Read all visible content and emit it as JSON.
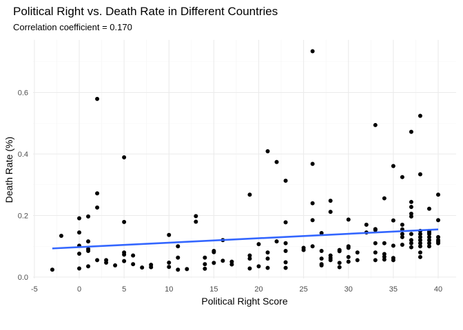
{
  "chart_data": {
    "type": "scatter",
    "title": "Political Right vs. Death Rate in Different Countries",
    "subtitle": "Correlation coefficient = 0.170",
    "xlabel": "Political Right Score",
    "ylabel": "Death Rate (%)",
    "xlim": [
      -5,
      42
    ],
    "ylim": [
      0,
      0.75
    ],
    "xticks": [
      -5,
      0,
      5,
      10,
      15,
      20,
      25,
      30,
      35,
      40
    ],
    "yticks": [
      0.0,
      0.2,
      0.4,
      0.6
    ],
    "ytick_labels": [
      "0.0",
      "0.2",
      "0.4",
      "0.6"
    ],
    "grid": true,
    "point_color": "#000000",
    "trend_color": "#3366ff",
    "trend_line": {
      "x": [
        -3,
        40
      ],
      "y": [
        0.093,
        0.155
      ]
    },
    "points": [
      [
        -3,
        0.024
      ],
      [
        -2,
        0.134
      ],
      [
        0,
        0.191
      ],
      [
        0,
        0.145
      ],
      [
        0,
        0.102
      ],
      [
        0,
        0.076
      ],
      [
        0,
        0.028
      ],
      [
        1,
        0.197
      ],
      [
        1,
        0.116
      ],
      [
        1,
        0.091
      ],
      [
        1,
        0.085
      ],
      [
        1,
        0.035
      ],
      [
        2,
        0.579
      ],
      [
        2,
        0.272
      ],
      [
        2,
        0.226
      ],
      [
        2,
        0.055
      ],
      [
        3,
        0.055
      ],
      [
        3,
        0.047
      ],
      [
        4,
        0.038
      ],
      [
        5,
        0.389
      ],
      [
        5,
        0.179
      ],
      [
        5,
        0.08
      ],
      [
        5,
        0.073
      ],
      [
        5,
        0.052
      ],
      [
        6,
        0.07
      ],
      [
        6,
        0.042
      ],
      [
        7,
        0.031
      ],
      [
        8,
        0.04
      ],
      [
        8,
        0.032
      ],
      [
        10,
        0.137
      ],
      [
        10,
        0.047
      ],
      [
        10,
        0.033
      ],
      [
        11,
        0.1
      ],
      [
        11,
        0.063
      ],
      [
        11,
        0.024
      ],
      [
        12,
        0.026
      ],
      [
        13,
        0.198
      ],
      [
        13,
        0.18
      ],
      [
        14,
        0.063
      ],
      [
        14,
        0.042
      ],
      [
        14,
        0.027
      ],
      [
        15,
        0.085
      ],
      [
        15,
        0.081
      ],
      [
        15,
        0.046
      ],
      [
        16,
        0.12
      ],
      [
        16,
        0.053
      ],
      [
        17,
        0.05
      ],
      [
        17,
        0.041
      ],
      [
        19,
        0.268
      ],
      [
        19,
        0.07
      ],
      [
        19,
        0.06
      ],
      [
        19,
        0.028
      ],
      [
        20,
        0.107
      ],
      [
        20,
        0.035
      ],
      [
        21,
        0.409
      ],
      [
        21,
        0.08
      ],
      [
        21,
        0.06
      ],
      [
        21,
        0.03
      ],
      [
        22,
        0.374
      ],
      [
        22,
        0.116
      ],
      [
        23,
        0.313
      ],
      [
        23,
        0.178
      ],
      [
        23,
        0.11
      ],
      [
        23,
        0.085
      ],
      [
        23,
        0.048
      ],
      [
        23,
        0.03
      ],
      [
        25,
        0.095
      ],
      [
        25,
        0.088
      ],
      [
        26,
        0.734
      ],
      [
        26,
        0.368
      ],
      [
        26,
        0.24
      ],
      [
        26,
        0.185
      ],
      [
        26,
        0.1
      ],
      [
        27,
        0.143
      ],
      [
        27,
        0.085
      ],
      [
        27,
        0.06
      ],
      [
        27,
        0.042
      ],
      [
        27,
        0.038
      ],
      [
        28,
        0.248
      ],
      [
        28,
        0.212
      ],
      [
        28,
        0.07
      ],
      [
        28,
        0.062
      ],
      [
        28,
        0.055
      ],
      [
        29,
        0.088
      ],
      [
        29,
        0.084
      ],
      [
        29,
        0.046
      ],
      [
        29,
        0.032
      ],
      [
        30,
        0.187
      ],
      [
        30,
        0.1
      ],
      [
        30,
        0.095
      ],
      [
        30,
        0.065
      ],
      [
        30,
        0.05
      ],
      [
        31,
        0.08
      ],
      [
        31,
        0.055
      ],
      [
        32,
        0.17
      ],
      [
        32,
        0.145
      ],
      [
        33,
        0.494
      ],
      [
        33,
        0.156
      ],
      [
        33,
        0.153
      ],
      [
        33,
        0.11
      ],
      [
        33,
        0.08
      ],
      [
        33,
        0.055
      ],
      [
        34,
        0.256
      ],
      [
        34,
        0.11
      ],
      [
        34,
        0.075
      ],
      [
        34,
        0.066
      ],
      [
        34,
        0.057
      ],
      [
        35,
        0.361
      ],
      [
        35,
        0.184
      ],
      [
        35,
        0.102
      ],
      [
        35,
        0.062
      ],
      [
        35,
        0.055
      ],
      [
        36,
        0.325
      ],
      [
        36,
        0.17
      ],
      [
        36,
        0.155
      ],
      [
        36,
        0.14
      ],
      [
        36,
        0.13
      ],
      [
        36,
        0.105
      ],
      [
        37,
        0.472
      ],
      [
        37,
        0.244
      ],
      [
        37,
        0.228
      ],
      [
        37,
        0.206
      ],
      [
        37,
        0.197
      ],
      [
        37,
        0.14
      ],
      [
        37,
        0.12
      ],
      [
        37,
        0.11
      ],
      [
        37,
        0.097
      ],
      [
        38,
        0.524
      ],
      [
        38,
        0.334
      ],
      [
        38,
        0.15
      ],
      [
        38,
        0.14
      ],
      [
        38,
        0.13
      ],
      [
        38,
        0.12
      ],
      [
        38,
        0.11
      ],
      [
        38,
        0.1
      ],
      [
        38,
        0.08
      ],
      [
        38,
        0.065
      ],
      [
        39,
        0.222
      ],
      [
        39,
        0.15
      ],
      [
        39,
        0.145
      ],
      [
        39,
        0.14
      ],
      [
        39,
        0.13
      ],
      [
        39,
        0.12
      ],
      [
        39,
        0.11
      ],
      [
        39,
        0.1
      ],
      [
        40,
        0.268
      ],
      [
        40,
        0.185
      ],
      [
        40,
        0.13
      ],
      [
        40,
        0.12
      ],
      [
        40,
        0.115
      ],
      [
        40,
        0.11
      ]
    ]
  }
}
